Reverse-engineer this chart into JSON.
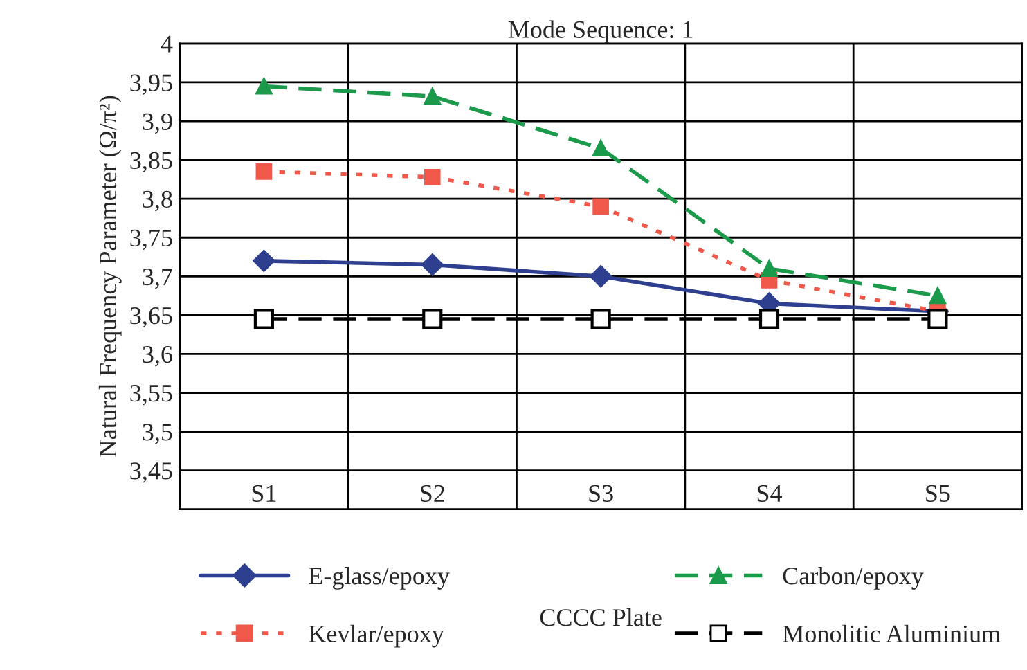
{
  "chart_data": {
    "type": "line",
    "title": "Mode Sequence: 1",
    "xlabel": "CCCC Plate",
    "ylabel": "Natural Frequency Parameter (Ω/π²)",
    "categories": [
      "S1",
      "S2",
      "S3",
      "S4",
      "S5"
    ],
    "series": [
      {
        "name": "E-glass/epoxy",
        "color": "#2e3f8f",
        "marker": "diamond",
        "line_style": "solid",
        "values": [
          3.72,
          3.715,
          3.7,
          3.665,
          3.655
        ]
      },
      {
        "name": "Kevlar/epoxy",
        "color": "#f0584a",
        "marker": "square",
        "line_style": "dotted",
        "values": [
          3.835,
          3.828,
          3.79,
          3.695,
          3.655
        ]
      },
      {
        "name": "Carbon/epoxy",
        "color": "#1a9a4a",
        "marker": "triangle",
        "line_style": "dashed",
        "values": [
          3.945,
          3.932,
          3.865,
          3.71,
          3.675
        ]
      },
      {
        "name": "Monolitic Aluminium",
        "color": "#000000",
        "marker": "square",
        "line_style": "dashed",
        "values": [
          3.645,
          3.645,
          3.645,
          3.645,
          3.645
        ]
      }
    ],
    "ylim": [
      3.4,
      4
    ],
    "yticks": [
      {
        "value": 3.45,
        "label": "3,45"
      },
      {
        "value": 3.5,
        "label": "3,5"
      },
      {
        "value": 3.55,
        "label": "3,55"
      },
      {
        "value": 3.6,
        "label": "3,6"
      },
      {
        "value": 3.65,
        "label": "3,65"
      },
      {
        "value": 3.7,
        "label": "3,7"
      },
      {
        "value": 3.75,
        "label": "3,75"
      },
      {
        "value": 3.8,
        "label": "3,8"
      },
      {
        "value": 3.85,
        "label": "3,85"
      },
      {
        "value": 3.9,
        "label": "3,9"
      },
      {
        "value": 3.95,
        "label": "3,95"
      },
      4
    ],
    "grid": true,
    "legend": "bottom"
  }
}
